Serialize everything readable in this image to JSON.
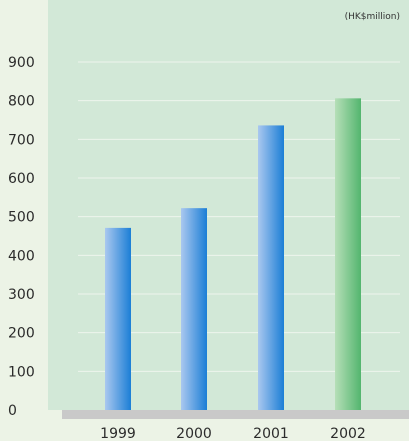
{
  "chart_data": {
    "type": "bar",
    "unit_label": "(HK$million)",
    "categories": [
      "1999",
      "2000",
      "2001",
      "2002"
    ],
    "values": [
      471,
      522,
      736,
      806
    ],
    "ylim": [
      0,
      900
    ],
    "yticks": [
      0,
      100,
      200,
      300,
      400,
      500,
      600,
      700,
      800,
      900
    ],
    "grid": true,
    "colors": {
      "panel": "#d2e8d7",
      "page": "#ecf3e6",
      "grid": "#eef5ec",
      "baseline": "#c9c9c9",
      "bar_blue_dark": "#1b7ed6",
      "bar_blue_light": "#aac8ef",
      "bar_green_dark": "#53b56e",
      "bar_green_light": "#b6dfb8"
    },
    "highlight_index": 3
  }
}
